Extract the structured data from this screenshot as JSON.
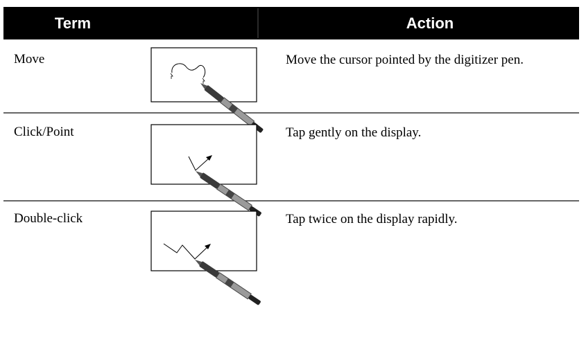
{
  "header": {
    "term": "Term",
    "action": "Action"
  },
  "table": {
    "rows": [
      [
        "Move",
        "Move the cursor pointed by the digitizer pen."
      ],
      [
        "Click/Point",
        "Tap gently on the display."
      ],
      [
        "Double-click",
        "Tap twice on the display rapidly."
      ]
    ]
  }
}
